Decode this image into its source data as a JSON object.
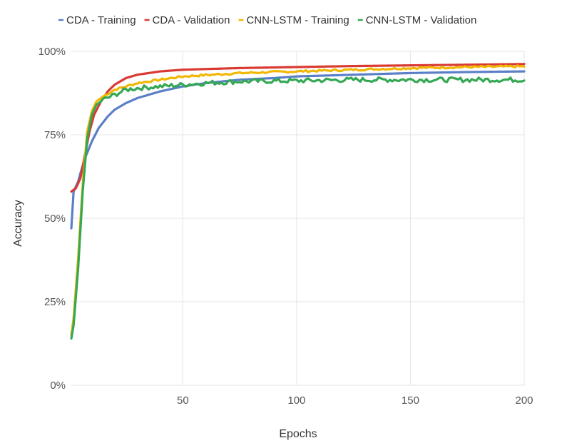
{
  "chart_data": {
    "type": "line",
    "title": "",
    "xlabel": "Epochs",
    "ylabel": "Accuracy",
    "xlim": [
      1,
      200
    ],
    "ylim": [
      0,
      1
    ],
    "x_ticks": [
      50,
      100,
      150,
      200
    ],
    "y_ticks": [
      0,
      0.25,
      0.5,
      0.75,
      1
    ],
    "y_tick_labels": [
      "0%",
      "25%",
      "50%",
      "75%",
      "100%"
    ],
    "grid": true,
    "legend_position": "top",
    "series": [
      {
        "name": "CDA - Training",
        "color": "#5b7fc7",
        "noise": 0,
        "points": [
          [
            1,
            0.47
          ],
          [
            2,
            0.58
          ],
          [
            3,
            0.595
          ],
          [
            4,
            0.61
          ],
          [
            5,
            0.635
          ],
          [
            7,
            0.68
          ],
          [
            10,
            0.73
          ],
          [
            13,
            0.77
          ],
          [
            17,
            0.805
          ],
          [
            20,
            0.825
          ],
          [
            25,
            0.845
          ],
          [
            30,
            0.86
          ],
          [
            40,
            0.88
          ],
          [
            50,
            0.895
          ],
          [
            60,
            0.905
          ],
          [
            75,
            0.915
          ],
          [
            90,
            0.92
          ],
          [
            100,
            0.925
          ],
          [
            125,
            0.93
          ],
          [
            150,
            0.935
          ],
          [
            175,
            0.938
          ],
          [
            200,
            0.94
          ]
        ]
      },
      {
        "name": "CDA - Validation",
        "color": "#d93a32",
        "noise": 0,
        "points": [
          [
            1,
            0.58
          ],
          [
            3,
            0.59
          ],
          [
            5,
            0.62
          ],
          [
            7,
            0.69
          ],
          [
            9,
            0.76
          ],
          [
            11,
            0.81
          ],
          [
            14,
            0.85
          ],
          [
            17,
            0.88
          ],
          [
            20,
            0.9
          ],
          [
            25,
            0.92
          ],
          [
            30,
            0.93
          ],
          [
            40,
            0.94
          ],
          [
            50,
            0.945
          ],
          [
            75,
            0.95
          ],
          [
            100,
            0.953
          ],
          [
            125,
            0.956
          ],
          [
            150,
            0.958
          ],
          [
            175,
            0.96
          ],
          [
            200,
            0.962
          ]
        ]
      },
      {
        "name": "CNN-LSTM - Training",
        "color": "#f2b705",
        "noise": 0.003,
        "points": [
          [
            1,
            0.15
          ],
          [
            2,
            0.2
          ],
          [
            4,
            0.38
          ],
          [
            6,
            0.6
          ],
          [
            8,
            0.76
          ],
          [
            10,
            0.82
          ],
          [
            12,
            0.85
          ],
          [
            15,
            0.865
          ],
          [
            20,
            0.885
          ],
          [
            25,
            0.895
          ],
          [
            30,
            0.905
          ],
          [
            40,
            0.915
          ],
          [
            50,
            0.925
          ],
          [
            75,
            0.935
          ],
          [
            100,
            0.94
          ],
          [
            125,
            0.945
          ],
          [
            150,
            0.95
          ],
          [
            175,
            0.953
          ],
          [
            200,
            0.955
          ]
        ]
      },
      {
        "name": "CNN-LSTM - Validation",
        "color": "#34a853",
        "noise": 0.007,
        "points": [
          [
            1,
            0.14
          ],
          [
            2,
            0.18
          ],
          [
            4,
            0.35
          ],
          [
            6,
            0.58
          ],
          [
            8,
            0.74
          ],
          [
            10,
            0.81
          ],
          [
            12,
            0.84
          ],
          [
            15,
            0.855
          ],
          [
            20,
            0.87
          ],
          [
            25,
            0.885
          ],
          [
            30,
            0.89
          ],
          [
            40,
            0.895
          ],
          [
            50,
            0.9
          ],
          [
            60,
            0.905
          ],
          [
            75,
            0.91
          ],
          [
            100,
            0.912
          ],
          [
            125,
            0.915
          ],
          [
            150,
            0.915
          ],
          [
            175,
            0.915
          ],
          [
            200,
            0.915
          ]
        ]
      }
    ]
  }
}
